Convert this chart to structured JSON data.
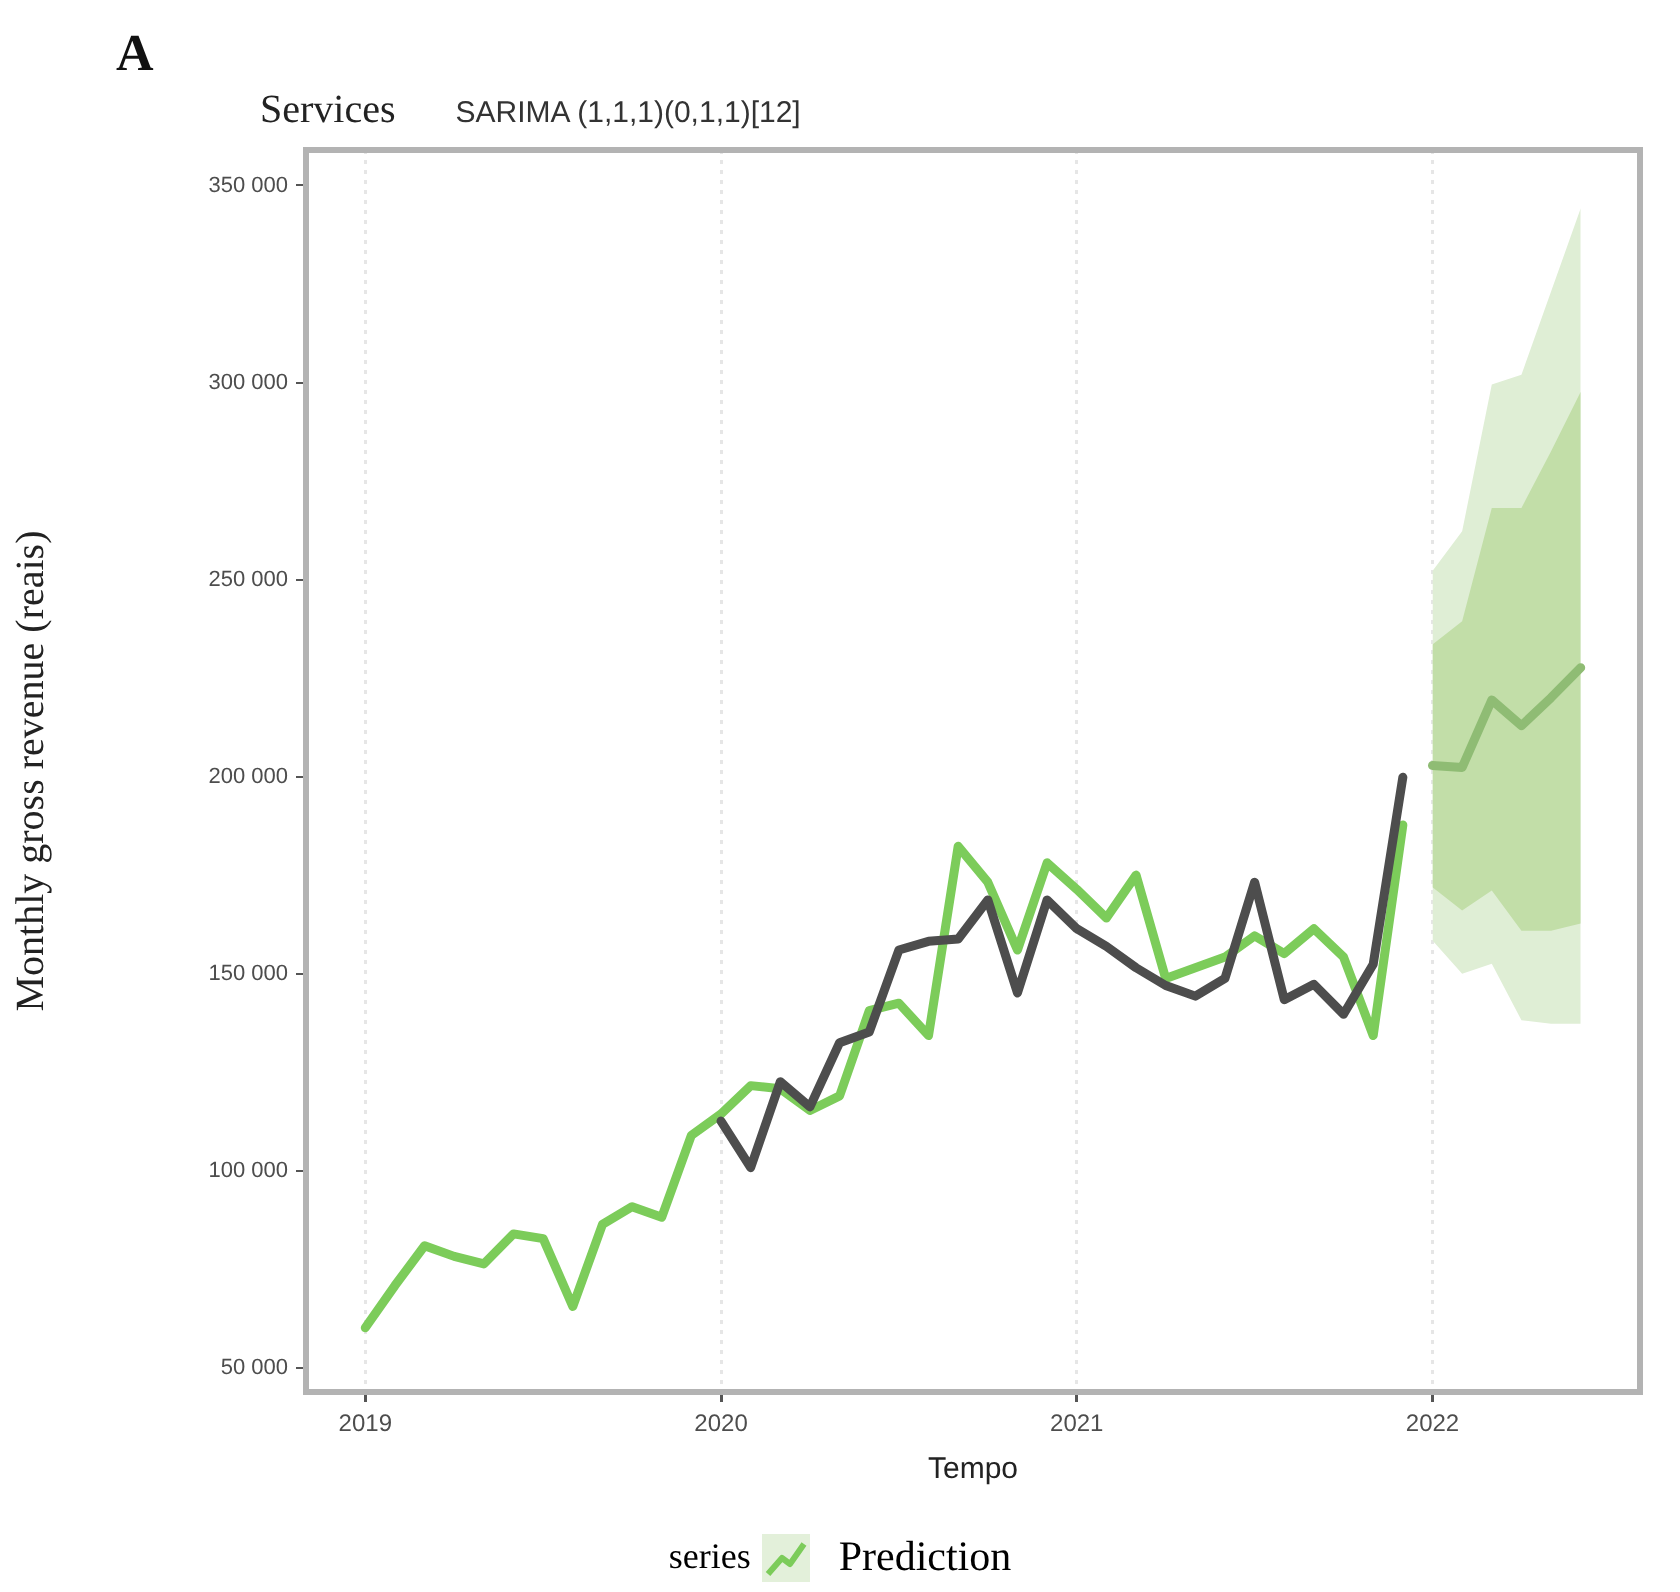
{
  "chart_data": {
    "type": "line",
    "title": "Services",
    "subtitle": "SARIMA (1,1,1)(0,1,1)[12]",
    "xlabel": "Tempo",
    "ylabel": "Monthly gross revenue (reais)",
    "legend_title": "series",
    "annotations": [
      "A"
    ],
    "xlim": [
      "2018-11",
      "2022-08"
    ],
    "xticks": [
      "2019",
      "2020",
      "2021",
      "2022"
    ],
    "ylim": [
      44000,
      359000
    ],
    "yticks": [
      {
        "value": 50000,
        "label": "50 000"
      },
      {
        "value": 100000,
        "label": "100 000"
      },
      {
        "value": 150000,
        "label": "150 000"
      },
      {
        "value": 200000,
        "label": "200 000"
      },
      {
        "value": 250000,
        "label": "250 000"
      },
      {
        "value": 300000,
        "label": "300 000"
      },
      {
        "value": 350000,
        "label": "350 000"
      }
    ],
    "grid": "x",
    "legend": "bottom",
    "marker": "none",
    "line_style": "solid",
    "series": [
      {
        "color": "#dfeed5",
        "x": [
          "2022-01",
          "2022-02",
          "2022-03",
          "2022-04",
          "2022-05",
          "2022-06"
        ],
        "values": [
          null,
          null,
          null,
          null,
          null,
          null
        ],
        "lower": [
          158500,
          150100,
          152600,
          138300,
          137400,
          137400
        ],
        "upper": [
          252200,
          262300,
          299500,
          302000,
          323100,
          344200
        ]
      },
      {
        "color": "#c2dea8",
        "x": [
          "2022-01",
          "2022-02",
          "2022-03",
          "2022-04",
          "2022-05",
          "2022-06"
        ],
        "values": [
          null,
          null,
          null,
          null,
          null,
          null
        ],
        "lower": [
          172000,
          166100,
          171200,
          161000,
          161000,
          162800
        ],
        "upper": [
          233600,
          239500,
          268200,
          268200,
          282600,
          297700
        ]
      },
      {
        "color": "#8fbc74",
        "x": [
          "2022-01",
          "2022-02",
          "2022-03",
          "2022-04",
          "2022-05",
          "2022-06"
        ],
        "values": [
          202900,
          202400,
          219500,
          213000,
          220100,
          227700
        ]
      },
      {
        "color": "#4d4d4d",
        "x": [
          "2020-01",
          "2020-02",
          "2020-03",
          "2020-04",
          "2020-05",
          "2020-06",
          "2020-07",
          "2020-08",
          "2020-09",
          "2020-10",
          "2020-11",
          "2020-12",
          "2021-01",
          "2021-02",
          "2021-03",
          "2021-04",
          "2021-05",
          "2021-06",
          "2021-07",
          "2021-08",
          "2021-09",
          "2021-10",
          "2021-11",
          "2021-12"
        ],
        "values": [
          112700,
          100900,
          122700,
          116300,
          132600,
          135300,
          156100,
          158300,
          158900,
          168800,
          145200,
          168800,
          161500,
          157000,
          151600,
          147100,
          144400,
          148900,
          173300,
          143500,
          147400,
          139800,
          152500,
          199900
        ]
      },
      {
        "name": "Prediction",
        "color": "#7ccc5a",
        "x": [
          "2019-01",
          "2019-02",
          "2019-03",
          "2019-04",
          "2019-05",
          "2019-06",
          "2019-07",
          "2019-08",
          "2019-09",
          "2019-10",
          "2019-11",
          "2019-12",
          "2020-01",
          "2020-02",
          "2020-03",
          "2020-04",
          "2020-05",
          "2020-06",
          "2020-07",
          "2020-08",
          "2020-09",
          "2020-10",
          "2020-11",
          "2020-12",
          "2021-01",
          "2021-02",
          "2021-03",
          "2021-04",
          "2021-05",
          "2021-06",
          "2021-07",
          "2021-08",
          "2021-09",
          "2021-10",
          "2021-11",
          "2021-12"
        ],
        "values": [
          60300,
          71000,
          81100,
          78400,
          76500,
          84100,
          82900,
          65700,
          86500,
          91000,
          88300,
          109100,
          114500,
          121700,
          120900,
          115400,
          119100,
          140700,
          142600,
          134400,
          182400,
          173300,
          156100,
          178200,
          171500,
          164200,
          175100,
          148900,
          151600,
          154300,
          159700,
          155200,
          161500,
          154300,
          134400,
          187800
        ]
      }
    ]
  }
}
